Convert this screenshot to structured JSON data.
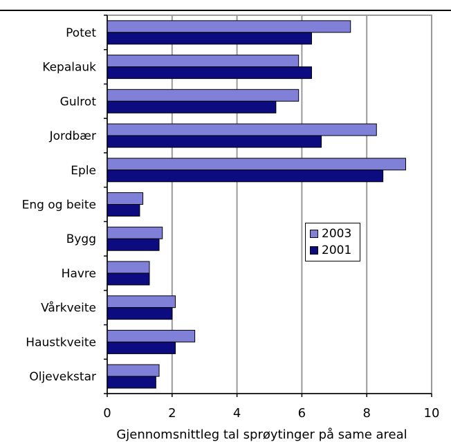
{
  "chart_data": {
    "type": "bar",
    "orientation": "horizontal",
    "title": "",
    "xlabel": "Gjennomsnittleg tal sprøytinger på same areal",
    "ylabel": "",
    "xlim": [
      0,
      10
    ],
    "xticks": [
      "0",
      "2",
      "4",
      "6",
      "8",
      "10"
    ],
    "grid": true,
    "legend_position": "center-right",
    "categories": [
      "Potet",
      "Kepalauk",
      "Gulrot",
      "Jordbær",
      "Eple",
      "Eng og beite",
      "Bygg",
      "Havre",
      "Vårkveite",
      "Haustkveite",
      "Oljevekstar"
    ],
    "series": [
      {
        "name": "2003",
        "color": "#8080d8",
        "values": [
          7.5,
          5.9,
          5.9,
          8.3,
          9.2,
          1.1,
          1.7,
          1.3,
          2.1,
          2.7,
          1.6
        ]
      },
      {
        "name": "2001",
        "color": "#0c0c80",
        "values": [
          6.3,
          6.3,
          5.2,
          6.6,
          8.5,
          1.0,
          1.6,
          1.3,
          2.0,
          2.1,
          1.5
        ]
      }
    ]
  }
}
